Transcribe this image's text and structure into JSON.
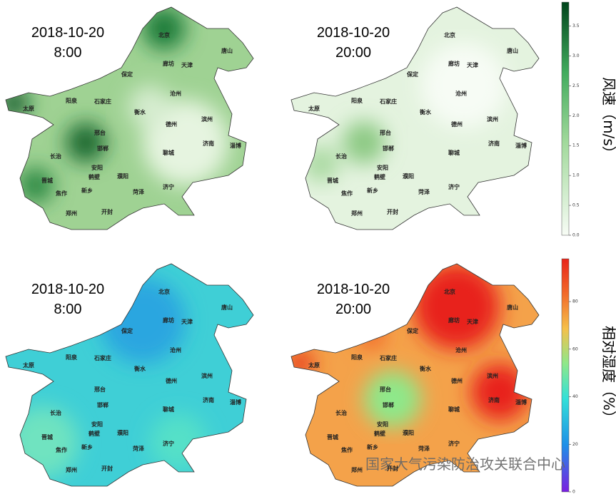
{
  "panels": [
    {
      "date": "2018-10-20",
      "time": "8:00"
    },
    {
      "date": "2018-10-20",
      "time": "20:00"
    },
    {
      "date": "2018-10-20",
      "time": "8:00"
    },
    {
      "date": "2018-10-20",
      "time": "20:00"
    }
  ],
  "cities": [
    "北京",
    "唐山",
    "廊坊",
    "天津",
    "保定",
    "沧州",
    "阳泉",
    "石家庄",
    "太原",
    "衡水",
    "德州",
    "滨州",
    "邢台",
    "济南",
    "淄博",
    "邯郸",
    "长治",
    "聊城",
    "安阳",
    "鹤壁",
    "濮阳",
    "晋城",
    "新乡",
    "菏泽",
    "济宁",
    "焦作",
    "郑州",
    "开封"
  ],
  "colorbars": [
    {
      "label": "风速（m/s）",
      "lim": [
        0,
        3.9
      ],
      "ticks": [
        {
          "value": 0,
          "label": "0.0"
        },
        {
          "value": 0.5,
          "label": "0.5"
        },
        {
          "value": 1,
          "label": "1.0"
        },
        {
          "value": 1.5,
          "label": "1.5"
        },
        {
          "value": 2,
          "label": "2.0"
        },
        {
          "value": 2.5,
          "label": "2.5"
        },
        {
          "value": 3,
          "label": "3.0"
        },
        {
          "value": 3.5,
          "label": "3.5"
        }
      ]
    },
    {
      "label": "相对湿度（%）",
      "lim": [
        0,
        98
      ],
      "ticks": [
        0,
        20,
        40,
        60,
        80
      ]
    }
  ],
  "watermark": "国家大气污染防治攻关联合中心"
}
